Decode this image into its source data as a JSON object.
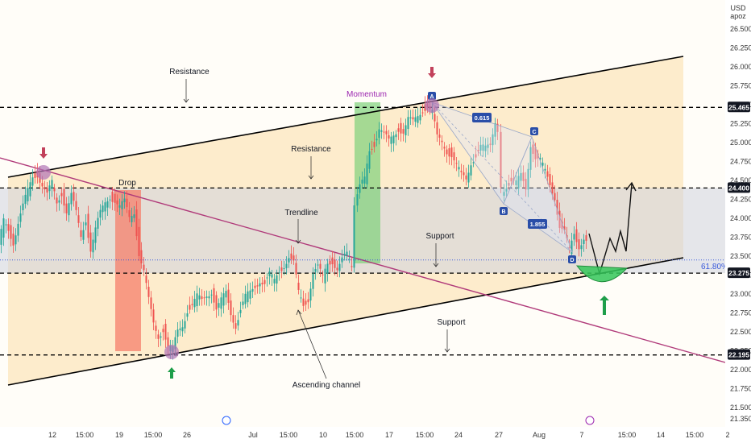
{
  "chart_data": {
    "type": "line",
    "currency": "USD",
    "currency_sub": "apoz",
    "ylim": [
      21.35,
      26.55
    ],
    "y_ticks": [
      "26.500",
      "26.250",
      "26.000",
      "25.750",
      "25.500",
      "25.250",
      "25.000",
      "24.750",
      "24.500",
      "24.250",
      "24.000",
      "23.750",
      "23.500",
      "23.250",
      "23.000",
      "22.750",
      "22.500",
      "22.250",
      "22.000",
      "21.750",
      "21.500",
      "21.350"
    ],
    "x_ticks": [
      "12",
      "15:00",
      "19",
      "15:00",
      "26",
      "Jul",
      "15:00",
      "10",
      "15:00",
      "17",
      "15:00",
      "24",
      "27",
      "Aug",
      "7",
      "15:00",
      "14",
      "15:00",
      "2"
    ],
    "levels": [
      {
        "value": 25.465,
        "label": "25.465"
      },
      {
        "value": 24.4,
        "label": "24.400"
      },
      {
        "value": 23.275,
        "label": "23.275"
      },
      {
        "value": 22.195,
        "label": "22.195"
      }
    ],
    "fib_label": "61.80%",
    "annotations": {
      "resistance_top": "Resistance",
      "resistance_mid": "Resistance",
      "support_mid": "Support",
      "support_low": "Support",
      "trendline": "Trendline",
      "ascending_channel": "Ascending channel",
      "drop": "Drop",
      "momentum": "Momentum"
    },
    "harmonic": {
      "points": [
        "A",
        "B",
        "C",
        "D"
      ],
      "ratio1": "0.615",
      "ratio2": "1.855"
    },
    "price_path": [
      [
        0,
        23.65
      ],
      [
        6,
        23.95
      ],
      [
        12,
        23.85
      ],
      [
        18,
        23.7
      ],
      [
        24,
        23.95
      ],
      [
        30,
        24.15
      ],
      [
        36,
        24.35
      ],
      [
        42,
        24.55
      ],
      [
        48,
        24.6
      ],
      [
        54,
        24.45
      ],
      [
        60,
        24.3
      ],
      [
        66,
        24.45
      ],
      [
        72,
        24.2
      ],
      [
        78,
        24.35
      ],
      [
        84,
        24.1
      ],
      [
        90,
        24.3
      ],
      [
        96,
        24.05
      ],
      [
        102,
        23.75
      ],
      [
        108,
        24.0
      ],
      [
        114,
        23.6
      ],
      [
        120,
        23.85
      ],
      [
        126,
        24.05
      ],
      [
        132,
        24.2
      ],
      [
        138,
        24.3
      ],
      [
        144,
        24.25
      ],
      [
        150,
        24.15
      ],
      [
        156,
        24.2
      ],
      [
        162,
        24.0
      ],
      [
        168,
        24.1
      ],
      [
        174,
        23.55
      ],
      [
        180,
        23.3
      ],
      [
        186,
        22.9
      ],
      [
        192,
        22.6
      ],
      [
        198,
        22.45
      ],
      [
        204,
        22.55
      ],
      [
        210,
        22.3
      ],
      [
        216,
        22.25
      ],
      [
        222,
        22.5
      ],
      [
        228,
        22.6
      ],
      [
        234,
        22.8
      ],
      [
        240,
        22.85
      ],
      [
        246,
        22.95
      ],
      [
        252,
        22.9
      ],
      [
        258,
        23.0
      ],
      [
        264,
        23.05
      ],
      [
        270,
        22.8
      ],
      [
        276,
        22.9
      ],
      [
        282,
        23.0
      ],
      [
        288,
        22.75
      ],
      [
        294,
        22.6
      ],
      [
        300,
        22.8
      ],
      [
        306,
        22.95
      ],
      [
        312,
        23.0
      ],
      [
        318,
        23.1
      ],
      [
        324,
        23.2
      ],
      [
        330,
        23.15
      ],
      [
        336,
        23.25
      ],
      [
        342,
        23.15
      ],
      [
        348,
        23.3
      ],
      [
        354,
        23.4
      ],
      [
        360,
        23.5
      ],
      [
        366,
        23.4
      ],
      [
        372,
        23.0
      ],
      [
        378,
        22.85
      ],
      [
        384,
        22.95
      ],
      [
        390,
        23.3
      ],
      [
        396,
        23.35
      ],
      [
        402,
        23.2
      ],
      [
        408,
        23.4
      ],
      [
        414,
        23.45
      ],
      [
        420,
        23.35
      ],
      [
        426,
        23.45
      ],
      [
        432,
        23.5
      ],
      [
        438,
        23.35
      ],
      [
        442,
        24.2
      ],
      [
        448,
        24.4
      ],
      [
        454,
        24.5
      ],
      [
        460,
        24.9
      ],
      [
        466,
        25.0
      ],
      [
        472,
        25.2
      ],
      [
        478,
        25.1
      ],
      [
        484,
        25.0
      ],
      [
        490,
        25.1
      ],
      [
        496,
        25.2
      ],
      [
        502,
        25.15
      ],
      [
        508,
        25.3
      ],
      [
        514,
        25.25
      ],
      [
        520,
        25.35
      ],
      [
        526,
        25.45
      ],
      [
        532,
        25.5
      ],
      [
        538,
        25.4
      ],
      [
        544,
        25.05
      ],
      [
        550,
        25.0
      ],
      [
        556,
        24.9
      ],
      [
        562,
        24.85
      ],
      [
        568,
        24.7
      ],
      [
        574,
        24.55
      ],
      [
        580,
        24.5
      ],
      [
        586,
        24.75
      ],
      [
        592,
        24.85
      ],
      [
        598,
        24.95
      ],
      [
        604,
        24.9
      ],
      [
        610,
        24.95
      ],
      [
        616,
        25.3
      ],
      [
        620,
        25.2
      ],
      [
        624,
        24.35
      ],
      [
        630,
        24.45
      ],
      [
        636,
        24.5
      ],
      [
        642,
        24.45
      ],
      [
        648,
        24.55
      ],
      [
        654,
        24.4
      ],
      [
        660,
        25.0
      ],
      [
        666,
        24.8
      ],
      [
        672,
        24.75
      ],
      [
        678,
        24.6
      ],
      [
        684,
        24.45
      ],
      [
        690,
        24.3
      ],
      [
        696,
        23.9
      ],
      [
        702,
        23.8
      ],
      [
        708,
        23.55
      ],
      [
        714,
        23.8
      ],
      [
        720,
        23.65
      ],
      [
        726,
        23.75
      ],
      [
        730,
        23.7
      ]
    ]
  }
}
